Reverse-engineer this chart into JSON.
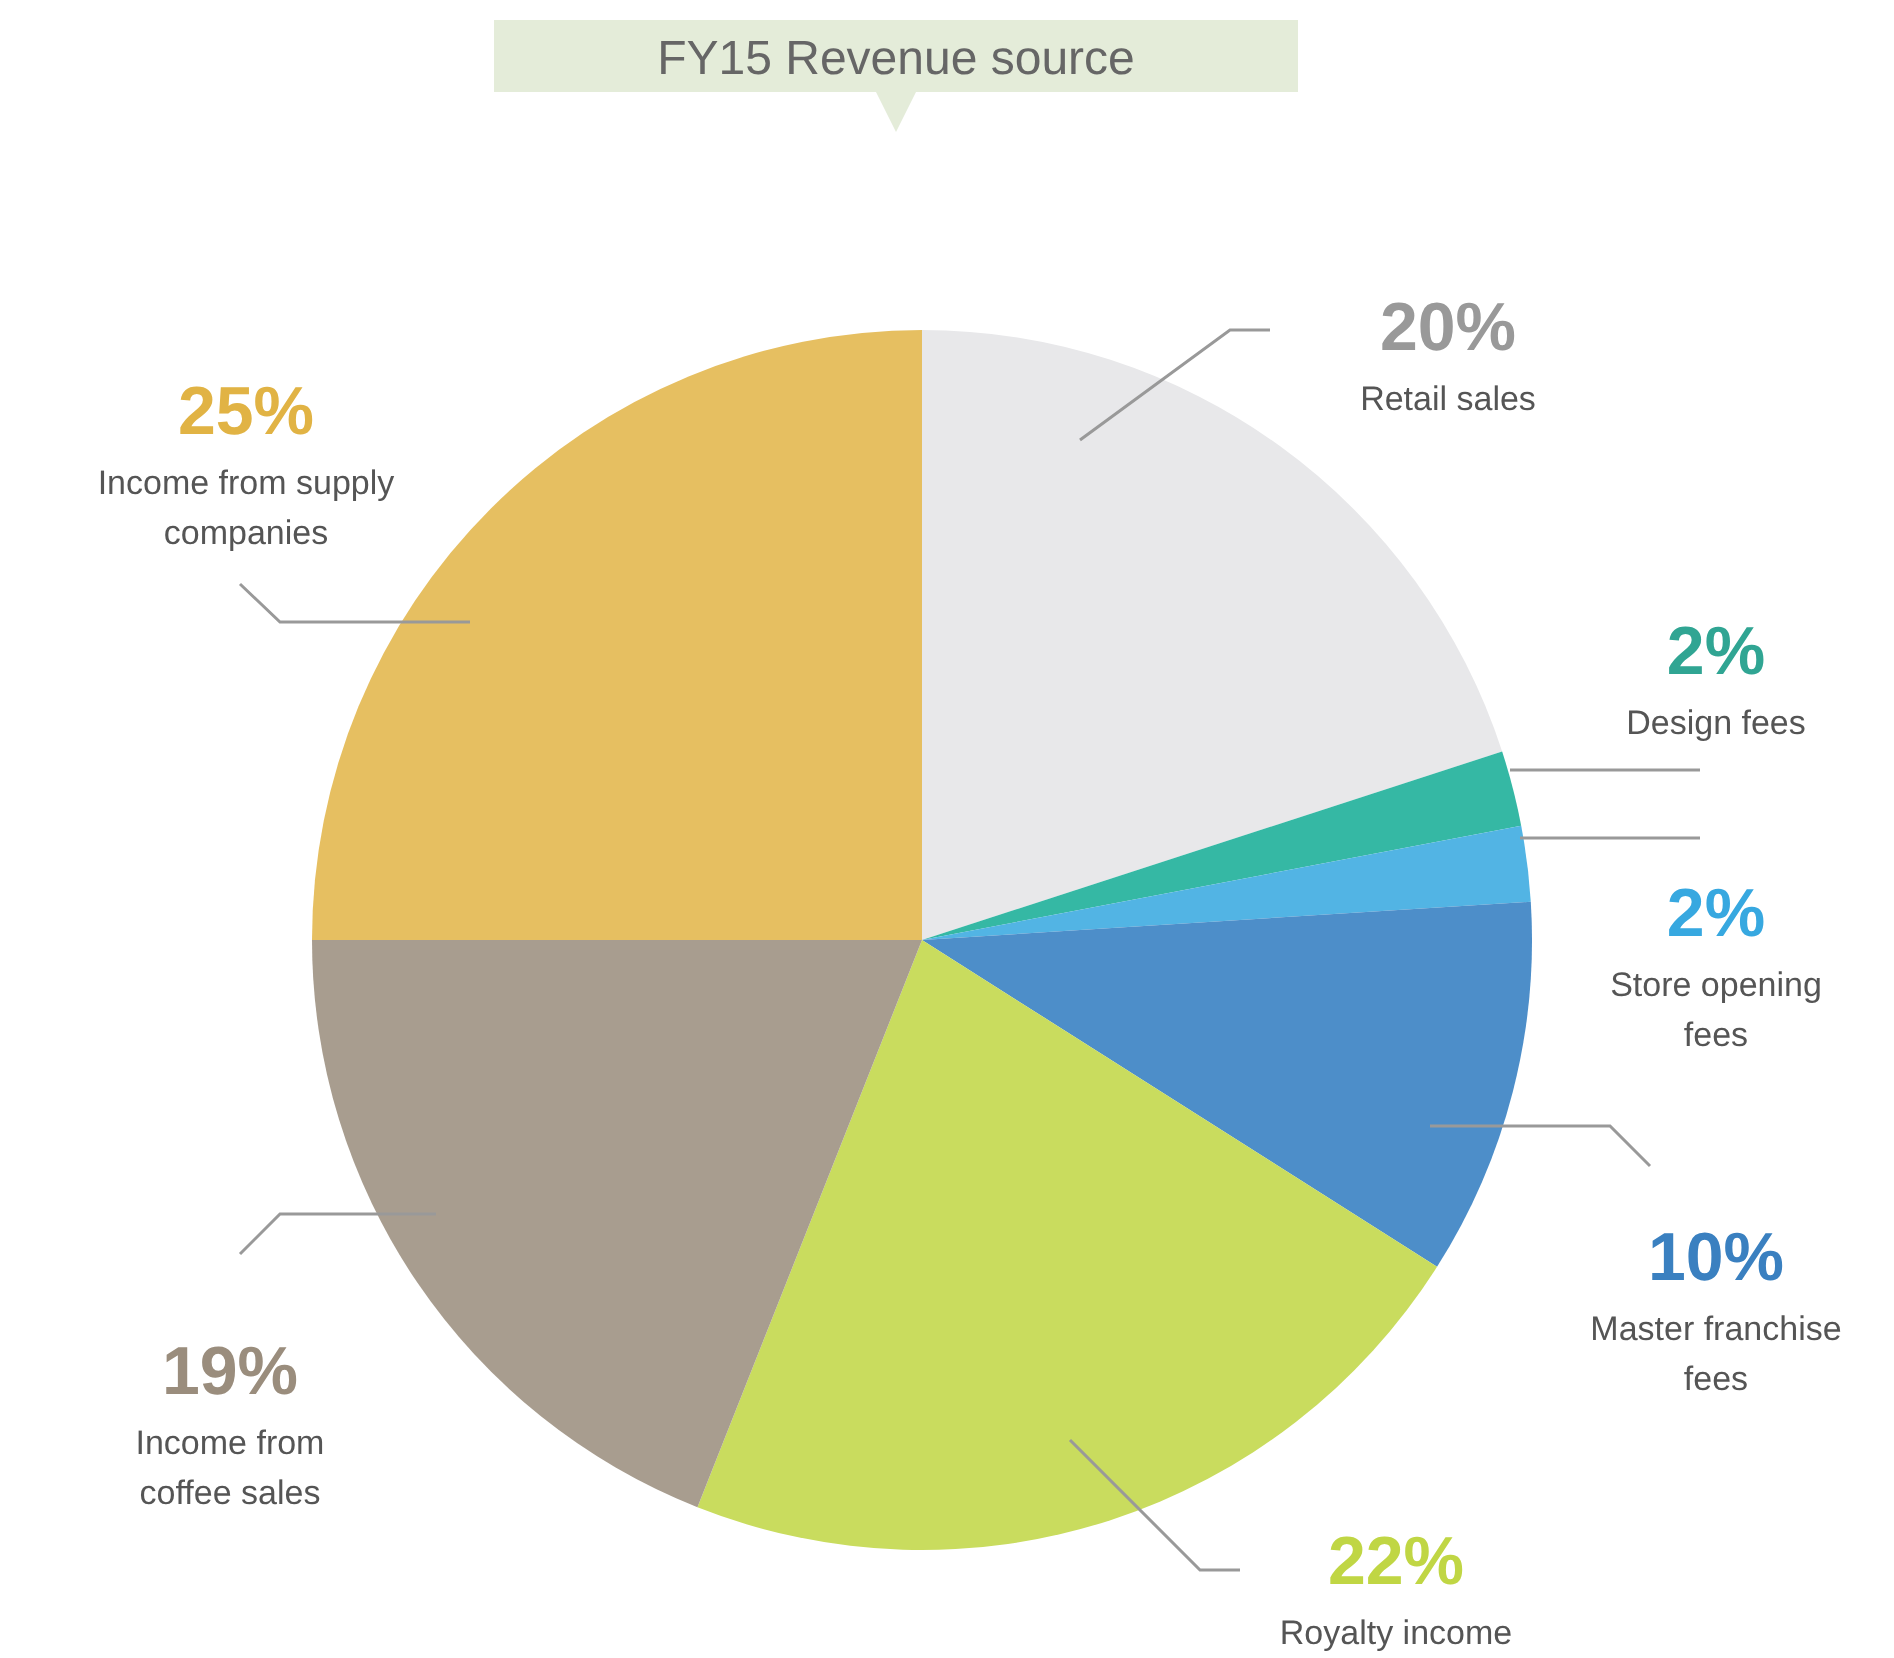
{
  "chart_data": {
    "type": "pie",
    "title": "FY15 Revenue source",
    "categories": [
      "Retail sales",
      "Design fees",
      "Store opening fees",
      "Master franchise fees",
      "Royalty income",
      "Income from coffee sales",
      "Income from supply companies"
    ],
    "values": [
      20,
      2,
      2,
      10,
      22,
      19,
      25
    ],
    "colors": [
      "#e8e8ea",
      "#35b8a4",
      "#52b4e4",
      "#4d8ec9",
      "#c9dc5e",
      "#a89d8f",
      "#e6bf61"
    ],
    "value_labels": [
      "20%",
      "2%",
      "2%",
      "10%",
      "22%",
      "19%",
      "25%"
    ]
  }
}
